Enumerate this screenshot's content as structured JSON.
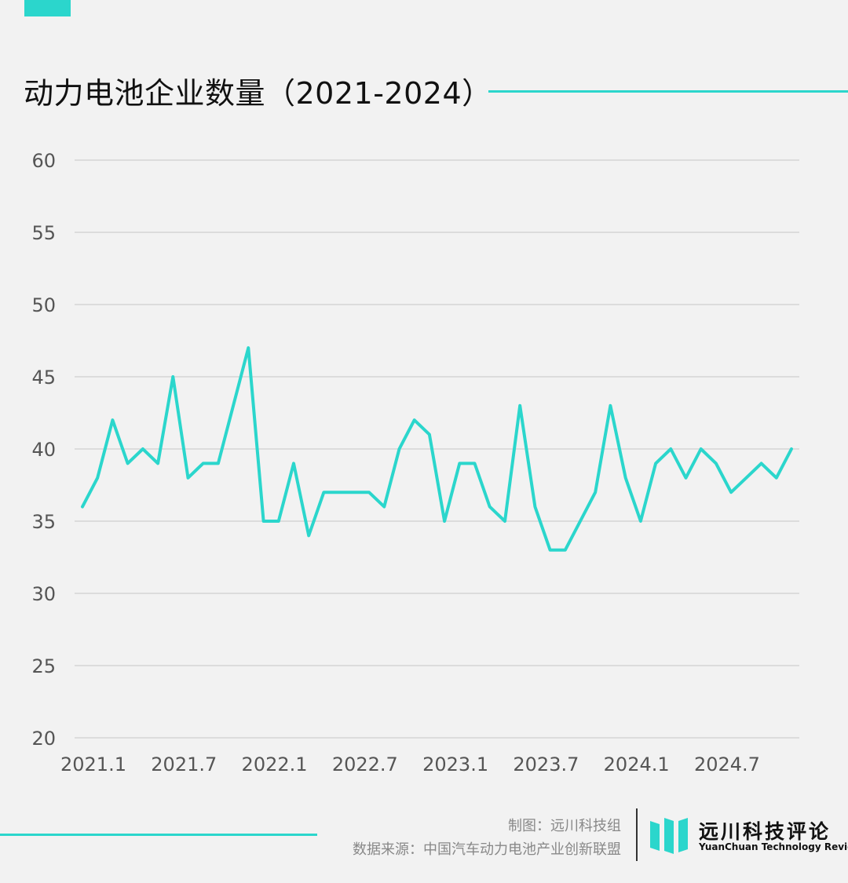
{
  "colors": {
    "accent": "#2bd6cc",
    "grid": "#cfcfcf",
    "tick_text": "#555555"
  },
  "header": {
    "title": "动力电池企业数量（2021-2024）"
  },
  "footer": {
    "maker": "制图：远川科技组",
    "source": "数据来源：中国汽车动力电池产业创新联盟",
    "logo_name": "远川科技评论",
    "logo_en": "YuanChuan Technology Review"
  },
  "chart_data": {
    "type": "line",
    "title": "动力电池企业数量（2021-2024）",
    "xlabel": "",
    "ylabel": "",
    "ylim": [
      20,
      60
    ],
    "yticks": [
      20,
      25,
      30,
      35,
      40,
      45,
      50,
      55,
      60
    ],
    "xtick_labels": [
      "2021.1",
      "2021.7",
      "2022.1",
      "2022.7",
      "2023.1",
      "2023.7",
      "2024.1",
      "2024.7"
    ],
    "grid": true,
    "x": [
      "2021.1",
      "2021.2",
      "2021.3",
      "2021.4",
      "2021.5",
      "2021.6",
      "2021.7",
      "2021.8",
      "2021.9",
      "2021.10",
      "2021.11",
      "2021.12",
      "2022.1",
      "2022.2",
      "2022.3",
      "2022.4",
      "2022.5",
      "2022.6",
      "2022.7",
      "2022.8",
      "2022.9",
      "2022.10",
      "2022.11",
      "2022.12",
      "2023.1",
      "2023.2",
      "2023.3",
      "2023.4",
      "2023.5",
      "2023.6",
      "2023.7",
      "2023.8",
      "2023.9",
      "2023.10",
      "2023.11",
      "2023.12",
      "2024.1",
      "2024.2",
      "2024.3",
      "2024.4",
      "2024.5",
      "2024.6",
      "2024.7",
      "2024.8",
      "2024.9",
      "2024.10",
      "2024.11",
      "2024.12"
    ],
    "series": [
      {
        "values": [
          36,
          38,
          42,
          39,
          40,
          39,
          45,
          38,
          39,
          39,
          43,
          47,
          35,
          35,
          39,
          34,
          37,
          37,
          37,
          37,
          36,
          40,
          42,
          41,
          35,
          39,
          39,
          36,
          35,
          43,
          36,
          33,
          33,
          35,
          37,
          43,
          38,
          35,
          39,
          40,
          38,
          40,
          39,
          37,
          38,
          39,
          38,
          40
        ]
      }
    ]
  }
}
